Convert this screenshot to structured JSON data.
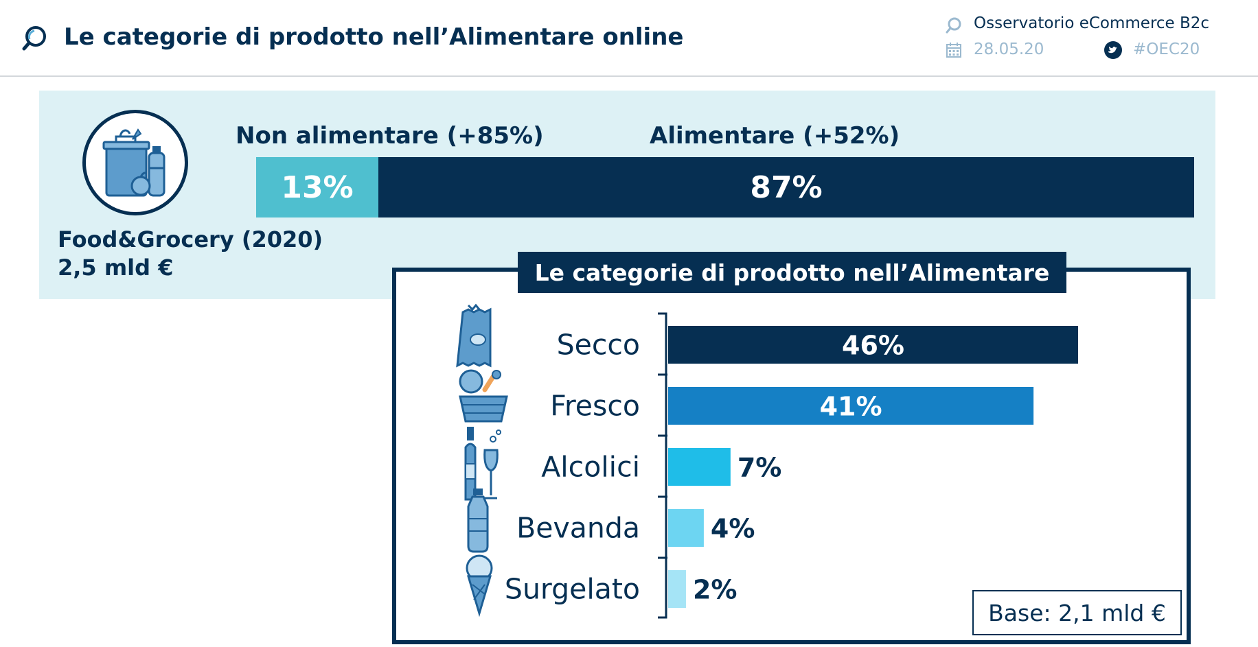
{
  "header": {
    "title": "Le categorie di prodotto nell’Alimentare online",
    "observatory": "Osservatorio eCommerce B2c",
    "date": "28.05.20",
    "hashtag": "#OEC20"
  },
  "overview": {
    "title": "Food&Grocery (2020)",
    "value": "2,5 mld €",
    "segments": [
      {
        "label": "Non alimentare (+85%)",
        "value": 13,
        "display": "13%",
        "color": "#4fbfcf"
      },
      {
        "label": "Alimentare (+52%)",
        "value": 87,
        "display": "87%",
        "color": "#062f52"
      }
    ]
  },
  "chart_data": {
    "type": "bar",
    "orientation": "horizontal",
    "title": "Le categorie di prodotto nell’Alimentare",
    "categories": [
      "Secco",
      "Fresco",
      "Alcolici",
      "Bevanda",
      "Surgelato"
    ],
    "values": [
      46,
      41,
      7,
      4,
      2
    ],
    "labels": [
      "46%",
      "41%",
      "7%",
      "4%",
      "2%"
    ],
    "colors": [
      "#062f52",
      "#1580c5",
      "#1fbde8",
      "#6dd5f2",
      "#a5e4f6"
    ],
    "icons": [
      "snack-bag-icon",
      "vegetable-basket-icon",
      "wine-bottle-glass-icon",
      "water-bottle-icon",
      "ice-cream-cone-icon"
    ],
    "xlim": [
      0,
      46
    ],
    "note": "Base: 2,1 mld €"
  }
}
